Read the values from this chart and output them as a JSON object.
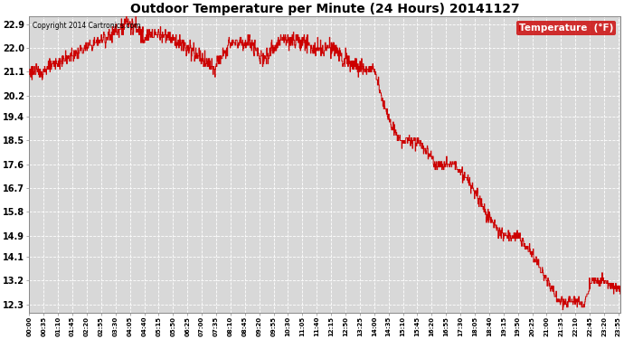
{
  "title": "Outdoor Temperature per Minute (24 Hours) 20141127",
  "copyright_text": "Copyright 2014 Cartronics.com",
  "legend_label": "Temperature  (°F)",
  "background_color": "#ffffff",
  "plot_bg_color": "#d8d8d8",
  "line_color": "#cc0000",
  "legend_bg_color": "#cc0000",
  "legend_text_color": "#ffffff",
  "grid_color": "#ffffff",
  "yticks": [
    12.3,
    13.2,
    14.1,
    14.9,
    15.8,
    16.7,
    17.6,
    18.5,
    19.4,
    20.2,
    21.1,
    22.0,
    22.9
  ],
  "ylim": [
    12.0,
    23.2
  ],
  "xlim": [
    0,
    1439
  ],
  "total_minutes": 1440,
  "xtick_interval": 35
}
